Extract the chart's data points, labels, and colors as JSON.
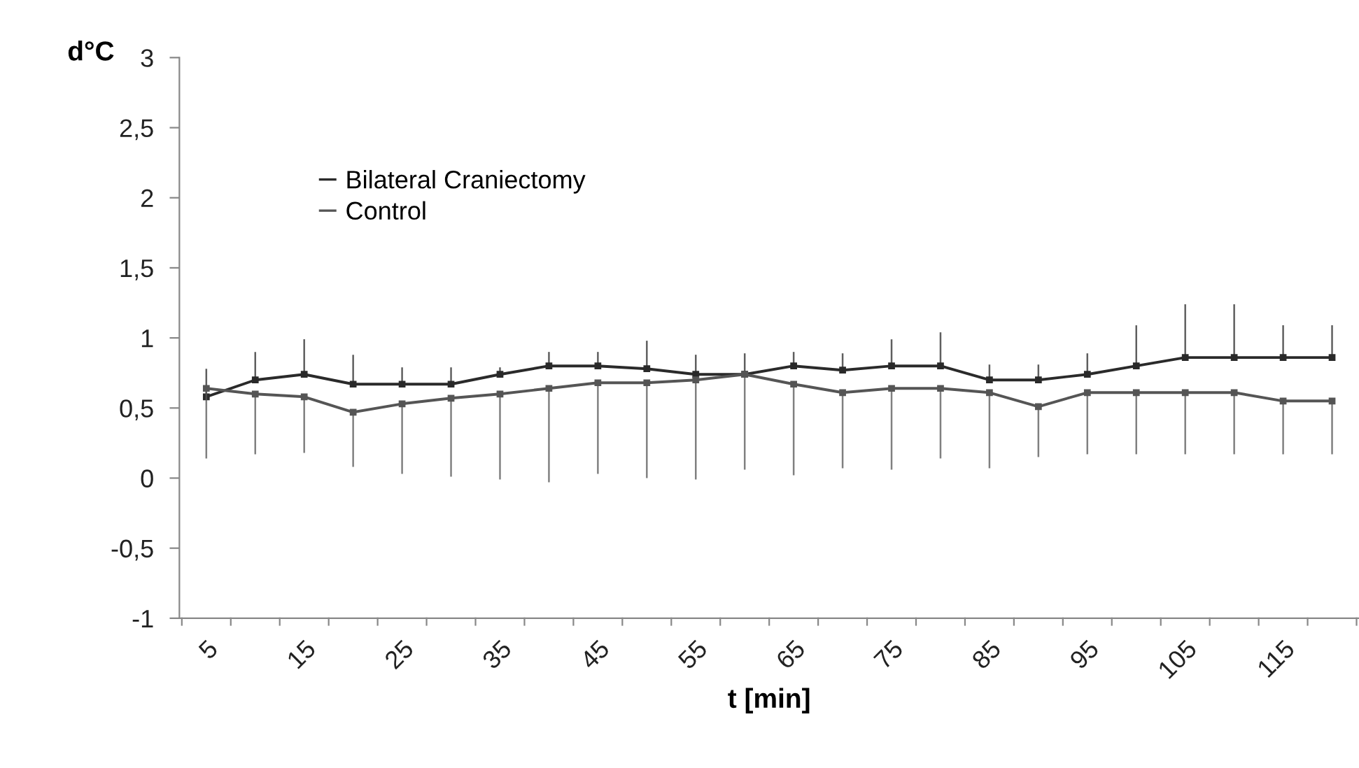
{
  "chart_data": {
    "type": "line",
    "xlabel": "t [min]",
    "ylabel": "d°C",
    "categories": [
      "5",
      null,
      "15",
      null,
      "25",
      null,
      "35",
      null,
      "45",
      null,
      "55",
      null,
      "65",
      null,
      "75",
      null,
      "85",
      null,
      "95",
      null,
      "105",
      null,
      "115",
      null
    ],
    "series": [
      {
        "name": "Bilateral Craniectomy",
        "color": "#2a2a2a",
        "values": [
          0.58,
          0.7,
          0.74,
          0.67,
          0.67,
          0.67,
          0.74,
          0.8,
          0.8,
          0.78,
          0.74,
          0.74,
          0.8,
          0.77,
          0.8,
          0.8,
          0.7,
          0.7,
          0.74,
          0.8,
          0.86,
          0.86,
          0.86,
          0.86
        ],
        "errors": [
          [
            0.58,
            0.78
          ],
          [
            0.7,
            0.9
          ],
          [
            0.74,
            0.99
          ],
          [
            0.67,
            0.88
          ],
          [
            0.67,
            0.79
          ],
          [
            0.67,
            0.79
          ],
          [
            0.74,
            0.79
          ],
          [
            0.8,
            0.9
          ],
          [
            0.8,
            0.9
          ],
          [
            0.78,
            0.98
          ],
          [
            0.74,
            0.88
          ],
          [
            0.74,
            0.89
          ],
          [
            0.8,
            0.9
          ],
          [
            0.77,
            0.89
          ],
          [
            0.8,
            0.99
          ],
          [
            0.8,
            1.04
          ],
          [
            0.7,
            0.81
          ],
          [
            0.7,
            0.81
          ],
          [
            0.74,
            0.89
          ],
          [
            0.8,
            1.09
          ],
          [
            0.86,
            1.24
          ],
          [
            0.86,
            1.24
          ],
          [
            0.86,
            1.09
          ],
          [
            0.86,
            1.09
          ]
        ]
      },
      {
        "name": "Control",
        "color": "#555555",
        "values": [
          0.64,
          0.6,
          0.58,
          0.47,
          0.53,
          0.57,
          0.6,
          0.64,
          0.68,
          0.68,
          0.7,
          0.74,
          0.67,
          0.61,
          0.64,
          0.64,
          0.61,
          0.51,
          0.61,
          0.61,
          0.61,
          0.61,
          0.55,
          0.55
        ],
        "errors": [
          [
            0.14,
            0.64
          ],
          [
            0.17,
            0.6
          ],
          [
            0.18,
            0.58
          ],
          [
            0.08,
            0.47
          ],
          [
            0.03,
            0.53
          ],
          [
            0.01,
            0.57
          ],
          [
            -0.01,
            0.6
          ],
          [
            -0.03,
            0.64
          ],
          [
            0.03,
            0.68
          ],
          [
            0.0,
            0.68
          ],
          [
            -0.01,
            0.7
          ],
          [
            0.06,
            0.74
          ],
          [
            0.02,
            0.67
          ],
          [
            0.07,
            0.61
          ],
          [
            0.06,
            0.64
          ],
          [
            0.14,
            0.64
          ],
          [
            0.07,
            0.61
          ],
          [
            0.15,
            0.51
          ],
          [
            0.17,
            0.61
          ],
          [
            0.17,
            0.61
          ],
          [
            0.17,
            0.61
          ],
          [
            0.17,
            0.61
          ],
          [
            0.17,
            0.55
          ],
          [
            0.17,
            0.55
          ]
        ]
      }
    ],
    "ylim": [
      -1,
      3
    ],
    "yticks": [
      -1,
      {
        "value": -0.5,
        "label": "-0,5"
      },
      0,
      {
        "value": 0.5,
        "label": "0,5"
      },
      1,
      {
        "value": 1.5,
        "label": "1,5"
      },
      2,
      {
        "value": 2.5,
        "label": "2,5"
      },
      3
    ],
    "legend": "top left",
    "marker": "square",
    "line_style": "solid",
    "grid": false
  }
}
